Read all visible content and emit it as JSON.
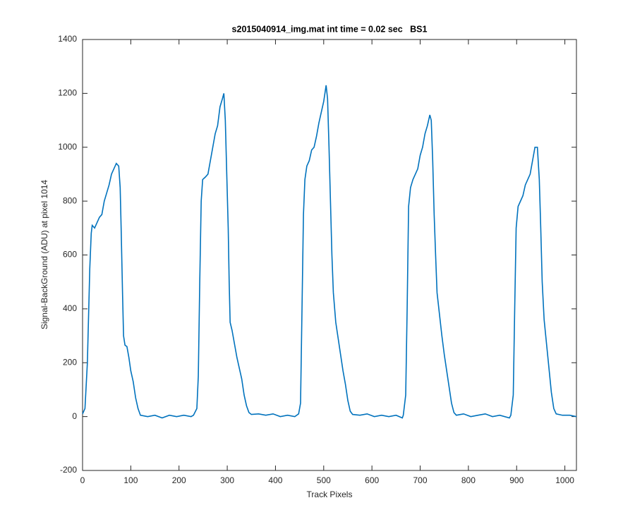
{
  "chart_data": {
    "type": "line",
    "title": "s2015040914_img.mat int time = 0.02 sec   BS1",
    "x_label": "Track Pixels",
    "y_label": "Signal-BackGround (ADU) at pixel 1014",
    "xlim": [
      0,
      1024
    ],
    "ylim": [
      -200,
      1400
    ],
    "xticks": [
      0,
      100,
      200,
      300,
      400,
      500,
      600,
      700,
      800,
      900,
      1000
    ],
    "yticks": [
      -200,
      0,
      200,
      400,
      600,
      800,
      1000,
      1200,
      1400
    ],
    "grid": false,
    "series": [
      {
        "name": "BS1",
        "color": "#0072bd",
        "x": [
          0,
          5,
          10,
          15,
          18,
          20,
          25,
          30,
          35,
          40,
          45,
          50,
          55,
          60,
          65,
          70,
          75,
          78,
          80,
          83,
          85,
          88,
          92,
          96,
          100,
          105,
          110,
          115,
          120,
          135,
          150,
          165,
          180,
          195,
          210,
          225,
          230,
          237,
          240,
          243,
          246,
          249,
          255,
          260,
          265,
          270,
          275,
          280,
          285,
          290,
          293,
          296,
          299,
          302,
          304,
          306,
          310,
          315,
          320,
          325,
          330,
          335,
          340,
          345,
          350,
          365,
          380,
          395,
          410,
          425,
          440,
          448,
          452,
          455,
          458,
          461,
          465,
          470,
          475,
          480,
          485,
          490,
          495,
          500,
          505,
          508,
          511,
          514,
          517,
          520,
          525,
          530,
          535,
          540,
          545,
          550,
          555,
          560,
          575,
          590,
          605,
          620,
          635,
          650,
          663,
          665,
          670,
          673,
          676,
          680,
          685,
          690,
          695,
          700,
          705,
          710,
          715,
          720,
          723,
          726,
          729,
          732,
          735,
          740,
          745,
          750,
          755,
          760,
          765,
          770,
          775,
          790,
          805,
          820,
          835,
          850,
          865,
          885,
          888,
          893,
          896,
          899,
          903,
          908,
          913,
          918,
          923,
          928,
          933,
          938,
          943,
          947,
          950,
          953,
          957,
          962,
          967,
          972,
          977,
          982,
          995,
          1010,
          1024
        ],
        "values": [
          10,
          30,
          200,
          550,
          680,
          710,
          700,
          720,
          740,
          750,
          800,
          830,
          860,
          900,
          920,
          940,
          930,
          850,
          700,
          450,
          300,
          265,
          260,
          220,
          170,
          130,
          70,
          30,
          5,
          0,
          5,
          -5,
          5,
          0,
          5,
          0,
          5,
          30,
          150,
          500,
          800,
          880,
          890,
          900,
          950,
          1000,
          1050,
          1080,
          1150,
          1180,
          1200,
          1100,
          900,
          700,
          500,
          350,
          320,
          270,
          220,
          180,
          140,
          80,
          40,
          15,
          8,
          10,
          5,
          10,
          0,
          5,
          0,
          10,
          50,
          400,
          750,
          880,
          930,
          950,
          990,
          1000,
          1040,
          1090,
          1130,
          1170,
          1230,
          1180,
          1000,
          800,
          600,
          460,
          350,
          290,
          230,
          170,
          120,
          60,
          20,
          8,
          5,
          10,
          0,
          5,
          0,
          5,
          -5,
          5,
          80,
          400,
          780,
          850,
          880,
          900,
          920,
          970,
          1000,
          1050,
          1080,
          1120,
          1100,
          950,
          750,
          600,
          460,
          380,
          300,
          230,
          170,
          110,
          50,
          15,
          5,
          10,
          0,
          5,
          10,
          0,
          5,
          -5,
          5,
          80,
          400,
          700,
          780,
          800,
          820,
          860,
          880,
          900,
          950,
          1000,
          1000,
          880,
          700,
          500,
          360,
          270,
          180,
          90,
          30,
          10,
          5,
          5,
          0
        ]
      }
    ]
  }
}
